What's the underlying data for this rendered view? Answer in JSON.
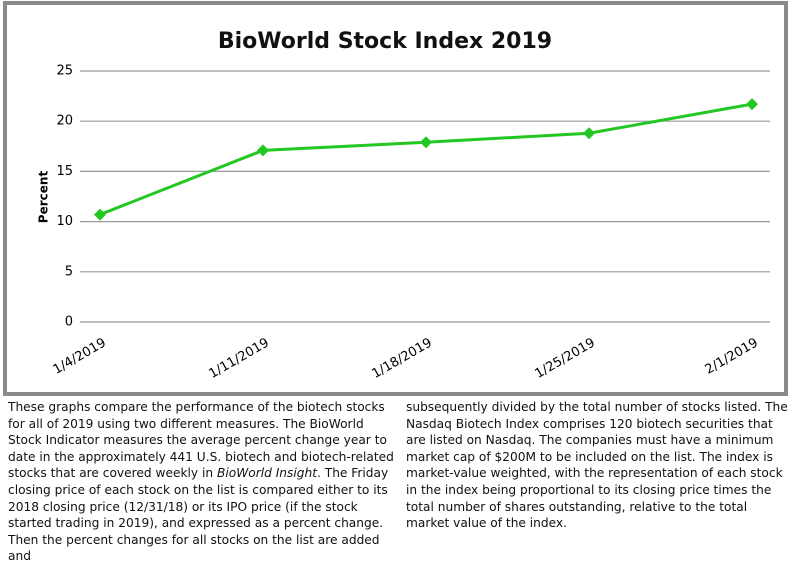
{
  "chart_data": {
    "type": "line",
    "title": "BioWorld Stock Index 2019",
    "y_label": "Percent",
    "categories": [
      "1/4/2019",
      "1/11/2019",
      "1/18/2019",
      "1/25/2019",
      "2/1/2019"
    ],
    "values": [
      10.7,
      17.1,
      17.9,
      18.8,
      21.7
    ],
    "color": "#22c722",
    "ylim": [
      0,
      25
    ],
    "yticks": [
      0,
      5,
      10,
      15,
      20,
      25
    ],
    "grid": true
  },
  "caption": {
    "left": [
      "These graphs compare the performance of the biotech stocks for all of 2019 using two different measures. The BioWorld Stock Indicator measures the average percent change year to date in the approximately 441 U.S. biotech and biotech-related stocks that are covered weekly in ",
      "BioWorld Insight",
      ". The Friday closing price of each stock on the list is compared either to its 2018 closing price (12/31/18) or its IPO price (if the stock started trading in 2019), and expressed as a percent change. Then the percent changes for all stocks on the list are added and"
    ],
    "right": "subsequently divided by the total number of stocks listed. The Nasdaq Biotech Index comprises 120 biotech securities that are listed on Nasdaq. The companies must have a minimum market cap of $200M to be included on the list. The index is market-value weighted, with the representation of each stock in the index being proportional to its closing price times the total number of shares outstanding, relative to the total market value of the index."
  }
}
